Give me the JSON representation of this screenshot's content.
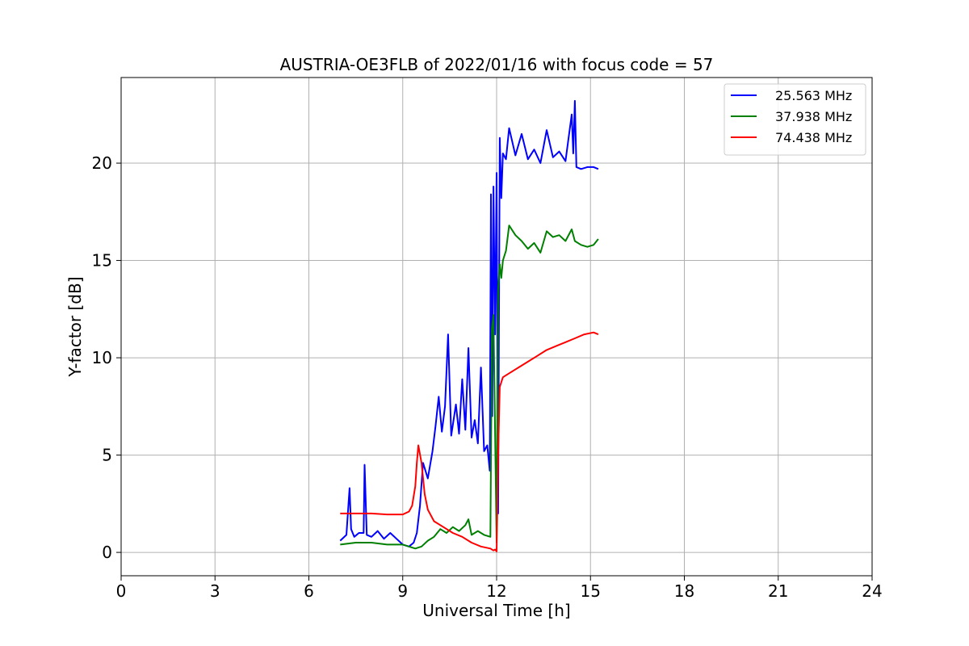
{
  "chart_data": {
    "type": "line",
    "title": "AUSTRIA-OE3FLB of 2022/01/16 with focus code = 57",
    "xlabel": "Universal Time [h]",
    "ylabel": "Y-factor [dB]",
    "xlim": [
      0,
      24
    ],
    "ylim": [
      -1.2,
      24.4
    ],
    "xticks": [
      0,
      3,
      6,
      9,
      12,
      15,
      18,
      21,
      24
    ],
    "yticks": [
      0,
      5,
      10,
      15,
      20
    ],
    "grid": true,
    "legend_position": "top-right",
    "series": [
      {
        "name": "25.563 MHz",
        "color": "#0000ff",
        "x": [
          7.0,
          7.2,
          7.3,
          7.35,
          7.45,
          7.6,
          7.75,
          7.78,
          7.85,
          8.0,
          8.2,
          8.4,
          8.6,
          8.8,
          9.0,
          9.2,
          9.35,
          9.45,
          9.55,
          9.65,
          9.8,
          9.95,
          10.05,
          10.15,
          10.25,
          10.35,
          10.45,
          10.55,
          10.7,
          10.8,
          10.9,
          11.0,
          11.1,
          11.2,
          11.3,
          11.4,
          11.5,
          11.6,
          11.7,
          11.78,
          11.82,
          11.86,
          11.9,
          11.95,
          12.0,
          12.05,
          12.1,
          12.15,
          12.2,
          12.3,
          12.4,
          12.6,
          12.8,
          13.0,
          13.2,
          13.4,
          13.6,
          13.8,
          14.0,
          14.2,
          14.4,
          14.45,
          14.5,
          14.55,
          14.7,
          14.9,
          15.1,
          15.25
        ],
        "y": [
          0.6,
          0.9,
          3.3,
          1.2,
          0.8,
          1.0,
          1.0,
          4.5,
          0.9,
          0.8,
          1.1,
          0.7,
          1.0,
          0.7,
          0.4,
          0.3,
          0.5,
          1.0,
          2.4,
          4.6,
          3.8,
          5.2,
          6.5,
          8.0,
          6.2,
          7.5,
          11.2,
          6.0,
          7.6,
          6.1,
          8.9,
          6.3,
          10.5,
          5.9,
          6.8,
          5.6,
          9.5,
          5.2,
          5.5,
          4.2,
          18.4,
          7.0,
          18.8,
          11.2,
          19.5,
          2.0,
          21.3,
          18.2,
          20.5,
          20.2,
          21.8,
          20.4,
          21.5,
          20.2,
          20.7,
          20.0,
          21.7,
          20.3,
          20.6,
          20.1,
          22.5,
          20.5,
          23.2,
          19.8,
          19.7,
          19.8,
          19.8,
          19.7
        ]
      },
      {
        "name": "37.938 MHz",
        "color": "#008000",
        "x": [
          7.0,
          7.5,
          8.0,
          8.5,
          9.0,
          9.4,
          9.6,
          9.8,
          10.0,
          10.2,
          10.4,
          10.6,
          10.8,
          11.0,
          11.1,
          11.2,
          11.4,
          11.6,
          11.8,
          11.85,
          11.9,
          12.0,
          12.05,
          12.1,
          12.15,
          12.2,
          12.3,
          12.4,
          12.6,
          12.8,
          13.0,
          13.2,
          13.4,
          13.6,
          13.8,
          14.0,
          14.2,
          14.4,
          14.5,
          14.7,
          14.9,
          15.1,
          15.25
        ],
        "y": [
          0.4,
          0.5,
          0.5,
          0.4,
          0.4,
          0.2,
          0.3,
          0.6,
          0.8,
          1.2,
          1.0,
          1.3,
          1.1,
          1.4,
          1.7,
          0.9,
          1.1,
          0.9,
          0.8,
          11.5,
          12.2,
          0.5,
          13.5,
          14.8,
          14.1,
          15.0,
          15.5,
          16.8,
          16.3,
          16.0,
          15.6,
          15.9,
          15.4,
          16.5,
          16.2,
          16.3,
          16.0,
          16.6,
          16.0,
          15.8,
          15.7,
          15.8,
          16.1
        ]
      },
      {
        "name": "74.438 MHz",
        "color": "#ff0000",
        "x": [
          7.0,
          7.5,
          8.0,
          8.5,
          9.0,
          9.2,
          9.3,
          9.4,
          9.45,
          9.5,
          9.6,
          9.7,
          9.8,
          10.0,
          10.3,
          10.6,
          10.9,
          11.2,
          11.5,
          11.8,
          11.9,
          11.95,
          12.0,
          12.05,
          12.1,
          12.2,
          12.4,
          12.7,
          13.0,
          13.3,
          13.6,
          13.9,
          14.2,
          14.5,
          14.8,
          15.1,
          15.25
        ],
        "y": [
          2.0,
          2.0,
          2.0,
          1.95,
          1.95,
          2.1,
          2.4,
          3.4,
          4.6,
          5.5,
          4.6,
          3.0,
          2.2,
          1.6,
          1.3,
          1.0,
          0.8,
          0.5,
          0.3,
          0.2,
          0.1,
          0.15,
          0.05,
          5.0,
          8.5,
          9.0,
          9.2,
          9.5,
          9.8,
          10.1,
          10.4,
          10.6,
          10.8,
          11.0,
          11.2,
          11.3,
          11.2
        ]
      }
    ]
  }
}
